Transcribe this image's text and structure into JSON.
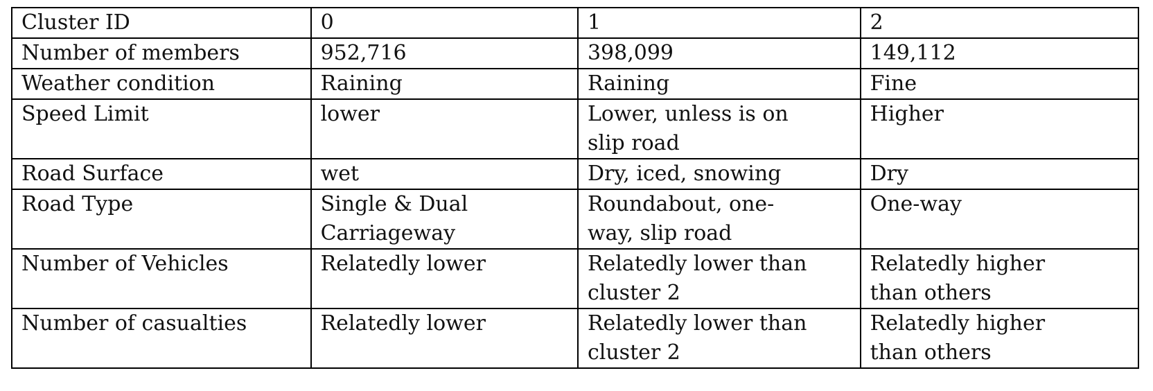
{
  "table": {
    "rows": [
      {
        "label": "Cluster ID",
        "cells": [
          [
            "0"
          ],
          [
            "1"
          ],
          [
            "2"
          ]
        ]
      },
      {
        "label": "Number of members",
        "cells": [
          [
            "952,716"
          ],
          [
            "398,099"
          ],
          [
            "149,112"
          ]
        ]
      },
      {
        "label": "Weather condition",
        "cells": [
          [
            "Raining"
          ],
          [
            "Raining"
          ],
          [
            "Fine"
          ]
        ]
      },
      {
        "label": "Speed Limit",
        "cells": [
          [
            "lower"
          ],
          [
            "Lower, unless is on",
            "slip road"
          ],
          [
            "Higher"
          ]
        ]
      },
      {
        "label": "Road Surface",
        "cells": [
          [
            "wet"
          ],
          [
            "Dry, iced, snowing"
          ],
          [
            "Dry"
          ]
        ]
      },
      {
        "label": "Road Type",
        "cells": [
          [
            "Single & Dual",
            "Carriageway"
          ],
          [
            "Roundabout, one-",
            "way, slip road"
          ],
          [
            "One-way"
          ]
        ]
      },
      {
        "label": "Number of Vehicles",
        "cells": [
          [
            "Relatedly lower"
          ],
          [
            "Relatedly lower than",
            "cluster 2"
          ],
          [
            "Relatedly higher",
            "than others"
          ]
        ]
      },
      {
        "label": "Number of casualties",
        "cells": [
          [
            "Relatedly lower"
          ],
          [
            "Relatedly lower than",
            "cluster 2"
          ],
          [
            "Relatedly higher",
            "than others"
          ]
        ]
      }
    ]
  }
}
